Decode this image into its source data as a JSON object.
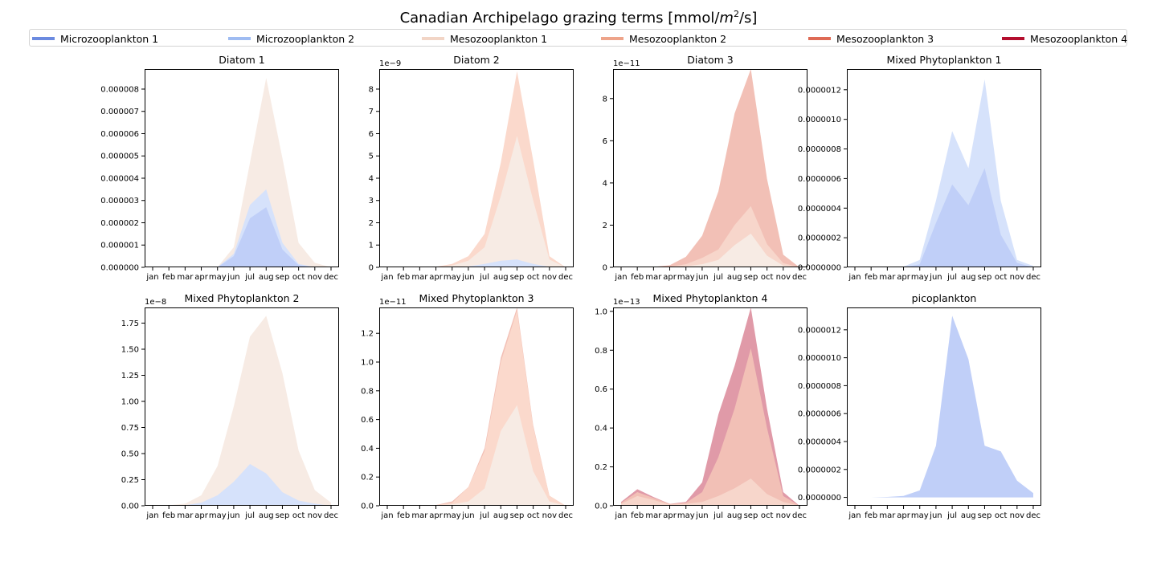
{
  "title": "Canadian Archipelago grazing terms [mmol/",
  "title_unit_base": "m",
  "title_unit_exp": "2",
  "title_tail": "/s]",
  "legend": [
    {
      "name": "Microzooplankton 1",
      "color": "#6b8ae0"
    },
    {
      "name": "Microzooplankton 2",
      "color": "#9fbcf2"
    },
    {
      "name": "Mesozooplankton 1",
      "color": "#f2d5c6"
    },
    {
      "name": "Mesozooplankton 2",
      "color": "#eea48a"
    },
    {
      "name": "Mesozooplankton 3",
      "color": "#de6a55"
    },
    {
      "name": "Mesozooplankton 4",
      "color": "#b40e2e"
    }
  ],
  "chart_data": [
    {
      "type": "area",
      "title": "Diatom 1",
      "exponent": "",
      "ylim": [
        0,
        8.9e-06
      ],
      "categories": [
        "jan",
        "feb",
        "mar",
        "apr",
        "may",
        "jun",
        "jul",
        "aug",
        "sep",
        "oct",
        "nov",
        "dec"
      ],
      "yticks": [
        0,
        1e-06,
        2e-06,
        3e-06,
        4e-06,
        5e-06,
        6e-06,
        7e-06,
        8e-06
      ],
      "ytick_labels": [
        "0.000000",
        "0.000001",
        "0.000002",
        "0.000003",
        "0.000004",
        "0.000005",
        "0.000006",
        "0.000007",
        "0.000008"
      ],
      "series": [
        {
          "color": "#f7ebe4",
          "values": [
            0,
            0,
            0,
            0,
            1e-08,
            9e-07,
            4.7e-06,
            8.5e-06,
            4.9e-06,
            1.1e-06,
            2e-07,
            0
          ]
        },
        {
          "color": "#d6e2fb",
          "values": [
            0,
            0,
            0,
            0,
            1e-08,
            6e-07,
            2.8e-06,
            3.5e-06,
            1.1e-06,
            1.5e-07,
            1e-08,
            0
          ]
        },
        {
          "color": "#c0cff8",
          "values": [
            0,
            0,
            0,
            0,
            0,
            5e-07,
            2.2e-06,
            2.7e-06,
            8e-07,
            1e-07,
            0,
            0
          ]
        }
      ]
    },
    {
      "type": "area",
      "title": "Diatom 2",
      "exponent": "1e−9",
      "ylim": [
        0,
        8.9
      ],
      "categories": [
        "jan",
        "feb",
        "mar",
        "apr",
        "may",
        "jun",
        "jul",
        "aug",
        "sep",
        "oct",
        "nov",
        "dec"
      ],
      "yticks": [
        0,
        1,
        2,
        3,
        4,
        5,
        6,
        7,
        8
      ],
      "ytick_labels": [
        "0",
        "1",
        "2",
        "3",
        "4",
        "5",
        "6",
        "7",
        "8"
      ],
      "series": [
        {
          "color": "#fbd9cc",
          "values": [
            0,
            0,
            0,
            0.02,
            0.15,
            0.5,
            1.5,
            4.7,
            8.8,
            4.8,
            0.5,
            0
          ]
        },
        {
          "color": "#f7ebe4",
          "values": [
            0,
            0,
            0,
            0.01,
            0.08,
            0.3,
            0.9,
            3.2,
            5.9,
            3.0,
            0.35,
            0
          ]
        },
        {
          "color": "#d6e2fb",
          "values": [
            0,
            0,
            0,
            0,
            0,
            0.04,
            0.15,
            0.3,
            0.35,
            0.15,
            0.02,
            0
          ]
        }
      ]
    },
    {
      "type": "area",
      "title": "Diatom 3",
      "exponent": "1e−11",
      "ylim": [
        0,
        9.4
      ],
      "categories": [
        "jan",
        "feb",
        "mar",
        "apr",
        "may",
        "jun",
        "jul",
        "aug",
        "sep",
        "oct",
        "nov",
        "dec"
      ],
      "yticks": [
        0,
        2,
        4,
        6,
        8
      ],
      "ytick_labels": [
        "0",
        "2",
        "4",
        "6",
        "8"
      ],
      "series": [
        {
          "color": "#f2c0b6",
          "values": [
            0,
            0,
            0.02,
            0.1,
            0.5,
            1.5,
            3.6,
            7.3,
            9.4,
            4.2,
            0.6,
            0
          ]
        },
        {
          "color": "#f7d6cb",
          "values": [
            0,
            0,
            0,
            0.03,
            0.15,
            0.45,
            0.85,
            2.0,
            2.9,
            1.1,
            0.2,
            0
          ]
        },
        {
          "color": "#f7ebe4",
          "values": [
            0,
            0,
            0,
            0.01,
            0.05,
            0.15,
            0.35,
            1.05,
            1.6,
            0.55,
            0.08,
            0
          ]
        }
      ]
    },
    {
      "type": "area",
      "title": "Mixed Phytoplankton 1",
      "exponent": "",
      "ylim": [
        0,
        1.34e-06
      ],
      "categories": [
        "jan",
        "feb",
        "mar",
        "apr",
        "may",
        "jun",
        "jul",
        "aug",
        "sep",
        "oct",
        "nov",
        "dec"
      ],
      "yticks": [
        0,
        2e-07,
        4e-07,
        6e-07,
        8e-07,
        1e-06,
        1.2e-06
      ],
      "ytick_labels": [
        "0.0000000",
        "0.0000002",
        "0.0000004",
        "0.0000006",
        "0.0000008",
        "0.0000010",
        "0.0000012"
      ],
      "series": [
        {
          "color": "#d6e2fb",
          "values": [
            0,
            0,
            0,
            5e-09,
            5e-08,
            4.5e-07,
            9.2e-07,
            6.7e-07,
            1.27e-06,
            4.5e-07,
            5e-08,
            1e-08
          ]
        },
        {
          "color": "#c0cff8",
          "values": [
            0,
            0,
            0,
            0,
            2e-08,
            3e-07,
            5.6e-07,
            4.2e-07,
            6.7e-07,
            2.2e-07,
            3e-08,
            0
          ]
        }
      ]
    },
    {
      "type": "area",
      "title": "Mixed Phytoplankton 2",
      "exponent": "1e−8",
      "ylim": [
        0,
        1.9
      ],
      "categories": [
        "jan",
        "feb",
        "mar",
        "apr",
        "may",
        "jun",
        "jul",
        "aug",
        "sep",
        "oct",
        "nov",
        "dec"
      ],
      "yticks": [
        0,
        0.25,
        0.5,
        0.75,
        1.0,
        1.25,
        1.5,
        1.75
      ],
      "ytick_labels": [
        "0.00",
        "0.25",
        "0.50",
        "0.75",
        "1.00",
        "1.25",
        "1.50",
        "1.75"
      ],
      "series": [
        {
          "color": "#f7ebe4",
          "values": [
            0,
            0.005,
            0.02,
            0.1,
            0.38,
            0.95,
            1.62,
            1.82,
            1.27,
            0.53,
            0.15,
            0.03
          ]
        },
        {
          "color": "#d6e2fb",
          "values": [
            0,
            0,
            0.005,
            0.03,
            0.1,
            0.23,
            0.4,
            0.31,
            0.13,
            0.05,
            0.02,
            0
          ]
        }
      ]
    },
    {
      "type": "area",
      "title": "Mixed Phytoplankton 3",
      "exponent": "1e−11",
      "ylim": [
        0,
        1.38
      ],
      "categories": [
        "jan",
        "feb",
        "mar",
        "apr",
        "may",
        "jun",
        "jul",
        "aug",
        "sep",
        "oct",
        "nov",
        "dec"
      ],
      "yticks": [
        0,
        0.2,
        0.4,
        0.6,
        0.8,
        1.0,
        1.2
      ],
      "ytick_labels": [
        "0.0",
        "0.2",
        "0.4",
        "0.6",
        "0.8",
        "1.0",
        "1.2"
      ],
      "series": [
        {
          "color": "#f2c0b6",
          "values": [
            0,
            0,
            0,
            0.005,
            0.03,
            0.13,
            0.4,
            1.03,
            1.38,
            0.56,
            0.07,
            0
          ]
        },
        {
          "color": "#fbd9cc",
          "values": [
            0,
            0,
            0,
            0.005,
            0.02,
            0.13,
            0.38,
            1.0,
            1.36,
            0.55,
            0.07,
            0
          ]
        },
        {
          "color": "#f7ebe4",
          "values": [
            0,
            0,
            0,
            0.003,
            0.01,
            0.03,
            0.12,
            0.52,
            0.7,
            0.24,
            0.03,
            0
          ]
        }
      ]
    },
    {
      "type": "area",
      "title": "Mixed Phytoplankton 4",
      "exponent": "1e−13",
      "ylim": [
        0,
        1.02
      ],
      "categories": [
        "jan",
        "feb",
        "mar",
        "apr",
        "may",
        "jun",
        "jul",
        "aug",
        "sep",
        "oct",
        "nov",
        "dec"
      ],
      "yticks": [
        0,
        0.2,
        0.4,
        0.6,
        0.8,
        1.0
      ],
      "ytick_labels": [
        "0.0",
        "0.2",
        "0.4",
        "0.6",
        "0.8",
        "1.0"
      ],
      "series": [
        {
          "color": "#e09aa8",
          "values": [
            0.02,
            0.085,
            0.045,
            0.01,
            0.02,
            0.12,
            0.47,
            0.72,
            1.02,
            0.5,
            0.07,
            0
          ]
        },
        {
          "color": "#f2c0b6",
          "values": [
            0.015,
            0.07,
            0.04,
            0.01,
            0.015,
            0.07,
            0.25,
            0.5,
            0.81,
            0.4,
            0.05,
            0
          ]
        },
        {
          "color": "#f7d6cb",
          "values": [
            0.01,
            0.05,
            0.03,
            0.005,
            0.01,
            0.02,
            0.05,
            0.09,
            0.14,
            0.06,
            0.02,
            0
          ]
        }
      ]
    },
    {
      "type": "area",
      "title": "picoplankton",
      "exponent": "",
      "ylim": [
        -6e-08,
        1.36e-06
      ],
      "categories": [
        "jan",
        "feb",
        "mar",
        "apr",
        "may",
        "jun",
        "jul",
        "aug",
        "sep",
        "oct",
        "nov",
        "dec"
      ],
      "yticks": [
        0,
        2e-07,
        4e-07,
        6e-07,
        8e-07,
        1e-06,
        1.2e-06
      ],
      "ytick_labels": [
        "0.0000000",
        "0.0000002",
        "0.0000004",
        "0.0000006",
        "0.0000008",
        "0.0000010",
        "0.0000012"
      ],
      "series": [
        {
          "color": "#c0cff8",
          "values": [
            0,
            0,
            3e-09,
            1e-08,
            5e-08,
            3.7e-07,
            1.3e-06,
            9.9e-07,
            3.7e-07,
            3.3e-07,
            1.2e-07,
            3e-08
          ]
        }
      ]
    }
  ]
}
